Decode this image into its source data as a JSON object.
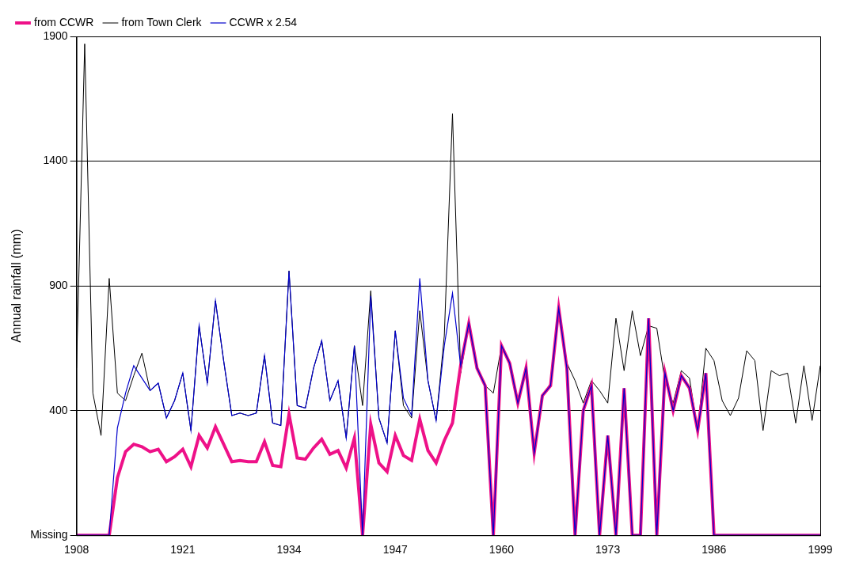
{
  "chart_data": {
    "type": "line",
    "y_label": "Annual rainfall (mm)",
    "x": [
      1908,
      1909,
      1910,
      1911,
      1912,
      1913,
      1914,
      1915,
      1916,
      1917,
      1918,
      1919,
      1920,
      1921,
      1922,
      1923,
      1924,
      1925,
      1926,
      1927,
      1928,
      1929,
      1930,
      1931,
      1932,
      1933,
      1934,
      1935,
      1936,
      1937,
      1938,
      1939,
      1940,
      1941,
      1942,
      1943,
      1944,
      1945,
      1946,
      1947,
      1948,
      1949,
      1950,
      1951,
      1952,
      1953,
      1954,
      1955,
      1956,
      1957,
      1958,
      1959,
      1960,
      1961,
      1962,
      1963,
      1964,
      1965,
      1966,
      1967,
      1968,
      1969,
      1970,
      1971,
      1972,
      1973,
      1974,
      1975,
      1976,
      1977,
      1978,
      1979,
      1980,
      1981,
      1982,
      1983,
      1984,
      1985,
      1986,
      1987,
      1988,
      1989,
      1990,
      1991,
      1992,
      1993,
      1994,
      1995,
      1996,
      1997,
      1998,
      1999
    ],
    "series": [
      {
        "name": "from CCWR",
        "color": "#ee1188",
        "values": [
          -100,
          -100,
          -100,
          -100,
          -100,
          130,
          235,
          265,
          255,
          235,
          245,
          195,
          215,
          245,
          175,
          300,
          250,
          335,
          265,
          195,
          200,
          195,
          195,
          275,
          180,
          175,
          385,
          210,
          205,
          250,
          285,
          225,
          240,
          170,
          290,
          -100,
          345,
          190,
          155,
          300,
          220,
          200,
          365,
          240,
          190,
          280,
          350,
          580,
          750,
          570,
          500,
          -100,
          660,
          590,
          430,
          570,
          230,
          460,
          500,
          810,
          570,
          -100,
          400,
          500,
          -100,
          300,
          -100,
          490,
          -100,
          -100,
          770,
          -100,
          550,
          400,
          540,
          490,
          320,
          550,
          -100,
          -100,
          -100,
          -100,
          -100,
          -100,
          -100,
          -100,
          -100,
          -100,
          -100,
          -100,
          -100,
          -100
        ]
      },
      {
        "name": "from Town Clerk",
        "color": "#000000",
        "values": [
          570,
          1870,
          470,
          300,
          930,
          470,
          440,
          540,
          630,
          480,
          510,
          370,
          440,
          550,
          320,
          740,
          510,
          840,
          600,
          380,
          390,
          380,
          390,
          620,
          350,
          340,
          960,
          420,
          410,
          570,
          680,
          440,
          520,
          290,
          660,
          420,
          880,
          370,
          270,
          720,
          420,
          370,
          800,
          520,
          360,
          700,
          1590,
          550,
          750,
          570,
          500,
          470,
          660,
          590,
          430,
          570,
          240,
          460,
          510,
          820,
          590,
          520,
          430,
          520,
          480,
          430,
          770,
          560,
          800,
          620,
          740,
          730,
          520,
          430,
          560,
          530,
          320,
          650,
          600,
          440,
          380,
          450,
          640,
          600,
          320,
          560,
          540,
          550,
          350,
          580,
          360,
          580
        ]
      },
      {
        "name": "CCWR x 2.54",
        "color": "#0000cc",
        "values": [
          -100,
          -100,
          -100,
          -100,
          -100,
          330,
          470,
          580,
          530,
          480,
          510,
          370,
          440,
          550,
          320,
          740,
          510,
          840,
          600,
          380,
          390,
          380,
          390,
          620,
          350,
          340,
          960,
          420,
          410,
          570,
          680,
          440,
          520,
          290,
          660,
          -100,
          860,
          370,
          270,
          720,
          450,
          380,
          930,
          520,
          360,
          660,
          870,
          580,
          750,
          570,
          500,
          -100,
          660,
          590,
          430,
          570,
          230,
          460,
          500,
          810,
          570,
          -100,
          400,
          500,
          -100,
          300,
          -100,
          490,
          -100,
          -100,
          770,
          -100,
          550,
          400,
          540,
          490,
          320,
          550,
          -100,
          -100,
          -100,
          -100,
          -100,
          -100,
          -100,
          -100,
          -100,
          -100,
          -100,
          -100,
          -100,
          -100
        ]
      }
    ],
    "xlim": [
      1908,
      1999
    ],
    "xticks": [
      1908,
      1921,
      1934,
      1947,
      1960,
      1973,
      1986,
      1999
    ],
    "ylim": [
      -100,
      1900
    ],
    "yticks": [
      {
        "value": -100,
        "label": "Missing"
      },
      400,
      900,
      1400,
      1900
    ],
    "grid": true,
    "legend": "upper left"
  }
}
